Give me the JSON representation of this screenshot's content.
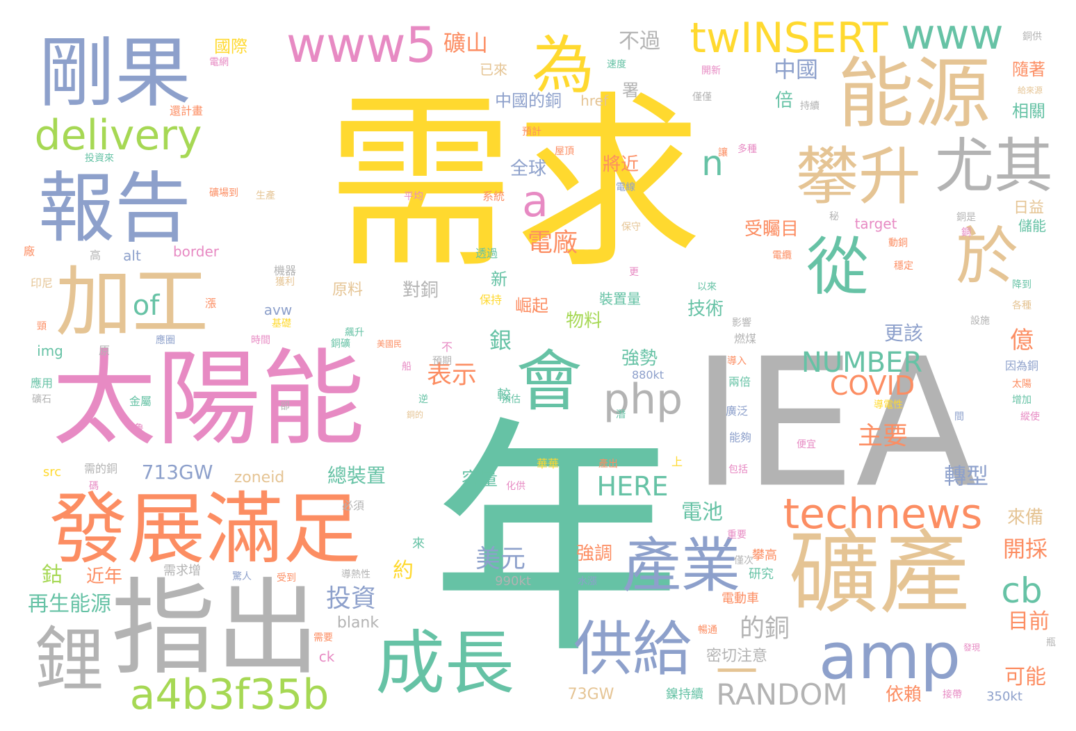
{
  "palette": {
    "yellow": "#ffd92f",
    "teal": "#66c2a5",
    "gray": "#b3b3b3",
    "pink": "#e78ac3",
    "orange": "#fc8d62",
    "blue": "#8da0cb",
    "tan": "#e5c494",
    "green": "#a6d854"
  },
  "words": [
    "需求",
    "年",
    "IEA",
    "太陽能",
    "發展滿足",
    "指出",
    "礦產",
    "剛果",
    "能源",
    "報告",
    "加工",
    "成長",
    "amp",
    "會",
    "攀升",
    "於",
    "鋰",
    "為",
    "從",
    "尤其",
    "產業",
    "供給",
    "www5",
    "www",
    "twINSERT",
    "delivery",
    "a4b3f35b",
    "technews",
    "php",
    "RANDOM",
    "cb",
    "a",
    "n",
    "of",
    "NUMBER",
    "COVID",
    "HERE",
    "一",
    "電廠",
    "表示",
    "投資",
    "美元",
    "礦山",
    "中國",
    "不過",
    "中國的銅",
    "全球",
    "將近",
    "受矚目",
    "日益",
    "技術",
    "物料",
    "電池",
    "轉型",
    "開採",
    "目前",
    "可能",
    "依賴",
    "再生能源",
    "鈷",
    "近年",
    "約",
    "的銅",
    "密切注意",
    "主要",
    "總裝置",
    "容量",
    "強勢",
    "強調",
    "713GW",
    "zoneid",
    "更該",
    "億",
    "來備",
    "銀",
    "對銅",
    "原料",
    "國際",
    "隨著",
    "相關",
    "儲能",
    "倍",
    "新",
    "較",
    "署",
    "href",
    "已來",
    "target",
    "border",
    "alt",
    "img",
    "src",
    "blank",
    "ck",
    "73GW",
    "鎳持續",
    "350kt",
    "990kt",
    "880kt",
    "avw",
    "崛起",
    "裝置量",
    "水漲",
    "研究",
    "攀高",
    "電動車",
    "暢通",
    "導熱性",
    "驚人",
    "受到",
    "需求增",
    "來",
    "包括",
    "能夠",
    "廣泛",
    "兩倍",
    "燃煤",
    "影響",
    "以來",
    "便宜",
    "接帶",
    "瓶",
    "發現",
    "需要",
    "導電性",
    "太陽",
    "縱使",
    "增加",
    "間",
    "因為銅",
    "導入",
    "設施",
    "各種",
    "降到",
    "穩定",
    "更",
    "電纜",
    "銅",
    "秘",
    "保守",
    "電線",
    "多種",
    "讓",
    "屋頂",
    "預計",
    "還計畫",
    "投資來",
    "生產",
    "平均",
    "系統",
    "礦場到",
    "高",
    "廠",
    "印尼",
    "頸",
    "應用",
    "礦石",
    "金屬",
    "鲁",
    "逆",
    "卻",
    "船",
    "銅礦",
    "美國民",
    "時間",
    "基礎",
    "獲利",
    "機器",
    "透過",
    "動銅",
    "保持",
    "飆升",
    "預期",
    "預估",
    "潛",
    "上",
    "產出",
    "華華",
    "化供",
    "必須",
    "需的銅",
    "碼",
    "漲",
    "原",
    "應圈",
    "電網",
    "速度",
    "開新",
    "僅僅",
    "持續",
    "給來源",
    "銅供",
    "僅次",
    "重要",
    "不",
    "銅的",
    "銅是"
  ]
}
